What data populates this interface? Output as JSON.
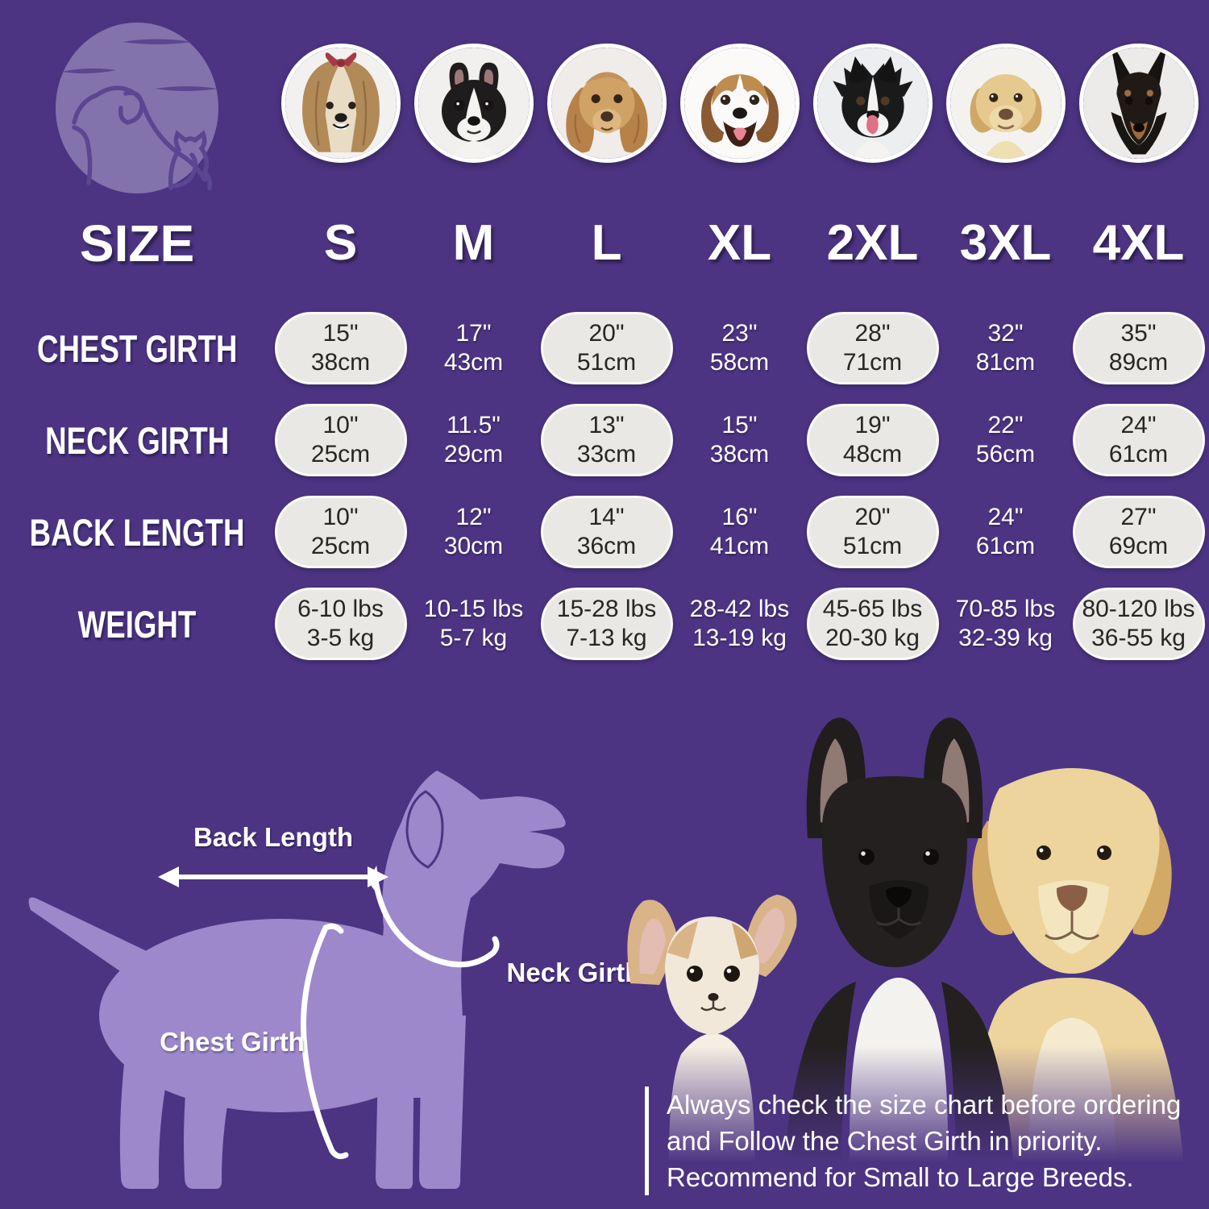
{
  "colors": {
    "background": "#4c3483",
    "logo_circle": "#8273ac",
    "logo_line_art": "#5b4691",
    "dog_silhouette": "#9d88cb",
    "pill_fill": "#eae8e5",
    "pill_border": "#fbfaf8",
    "pill_text": "#262626",
    "text_white": "#ffffff",
    "bow_red": "#a73a44"
  },
  "photos": {
    "icon_names": [
      "shih-tzu-photo",
      "boston-terrier-photo",
      "cocker-spaniel-photo",
      "beagle-photo",
      "border-collie-photo",
      "labrador-photo",
      "doberman-photo"
    ]
  },
  "size_header": {
    "label": "SIZE",
    "sizes": [
      "S",
      "M",
      "L",
      "XL",
      "2XL",
      "3XL",
      "4XL"
    ]
  },
  "table": {
    "rows": [
      {
        "label": "CHEST GIRTH",
        "cells": [
          {
            "in": "15\"",
            "cm": "38cm"
          },
          {
            "in": "17\"",
            "cm": "43cm"
          },
          {
            "in": "20\"",
            "cm": "51cm"
          },
          {
            "in": "23\"",
            "cm": "58cm"
          },
          {
            "in": "28\"",
            "cm": "71cm"
          },
          {
            "in": "32\"",
            "cm": "81cm"
          },
          {
            "in": "35\"",
            "cm": "89cm"
          }
        ]
      },
      {
        "label": "NECK GIRTH",
        "cells": [
          {
            "in": "10\"",
            "cm": "25cm"
          },
          {
            "in": "11.5\"",
            "cm": "29cm"
          },
          {
            "in": "13\"",
            "cm": "33cm"
          },
          {
            "in": "15\"",
            "cm": "38cm"
          },
          {
            "in": "19\"",
            "cm": "48cm"
          },
          {
            "in": "22\"",
            "cm": "56cm"
          },
          {
            "in": "24\"",
            "cm": "61cm"
          }
        ]
      },
      {
        "label": "BACK LENGTH",
        "cells": [
          {
            "in": "10\"",
            "cm": "25cm"
          },
          {
            "in": "12\"",
            "cm": "30cm"
          },
          {
            "in": "14\"",
            "cm": "36cm"
          },
          {
            "in": "16\"",
            "cm": "41cm"
          },
          {
            "in": "20\"",
            "cm": "51cm"
          },
          {
            "in": "24\"",
            "cm": "61cm"
          },
          {
            "in": "27\"",
            "cm": "69cm"
          }
        ]
      },
      {
        "label": "WEIGHT",
        "cells": [
          {
            "in": "6-10 lbs",
            "cm": "3-5 kg"
          },
          {
            "in": "10-15 lbs",
            "cm": "5-7 kg"
          },
          {
            "in": "15-28 lbs",
            "cm": "7-13 kg"
          },
          {
            "in": "28-42 lbs",
            "cm": "13-19 kg"
          },
          {
            "in": "45-65 lbs",
            "cm": "20-30 kg"
          },
          {
            "in": "70-85 lbs",
            "cm": "32-39 kg"
          },
          {
            "in": "80-120 lbs",
            "cm": "36-55 kg"
          }
        ]
      }
    ]
  },
  "diagram": {
    "back_length_label": "Back Length",
    "neck_girth_label": "Neck Girth",
    "chest_girth_label": "Chest Girth"
  },
  "note": {
    "line1": "Always check the size chart before ordering",
    "line2": "and Follow the Chest Girth in priority.",
    "line3": "Recommend for Small to Large Breeds."
  }
}
